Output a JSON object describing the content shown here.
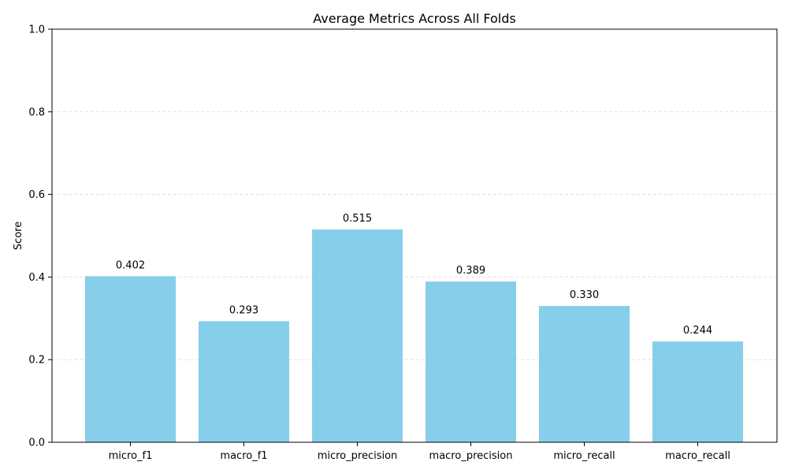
{
  "chart_data": {
    "type": "bar",
    "title": "Average Metrics Across All Folds",
    "xlabel": "",
    "ylabel": "Score",
    "categories": [
      "micro_f1",
      "macro_f1",
      "micro_precision",
      "macro_precision",
      "micro_recall",
      "macro_recall"
    ],
    "values": [
      0.402,
      0.293,
      0.515,
      0.389,
      0.33,
      0.244
    ],
    "value_labels": [
      "0.402",
      "0.293",
      "0.515",
      "0.389",
      "0.330",
      "0.244"
    ],
    "ylim": [
      0,
      1.0
    ],
    "yticks": [
      0.0,
      0.2,
      0.4,
      0.6,
      0.8,
      1.0
    ],
    "ytick_labels": [
      "0.0",
      "0.2",
      "0.4",
      "0.6",
      "0.8",
      "1.0"
    ],
    "grid": "horizontal dashed",
    "legend": "none",
    "colors": {
      "bar": "#87ceeb",
      "grid": "#e0e0e0",
      "axis": "#000000",
      "text": "#000000"
    }
  }
}
